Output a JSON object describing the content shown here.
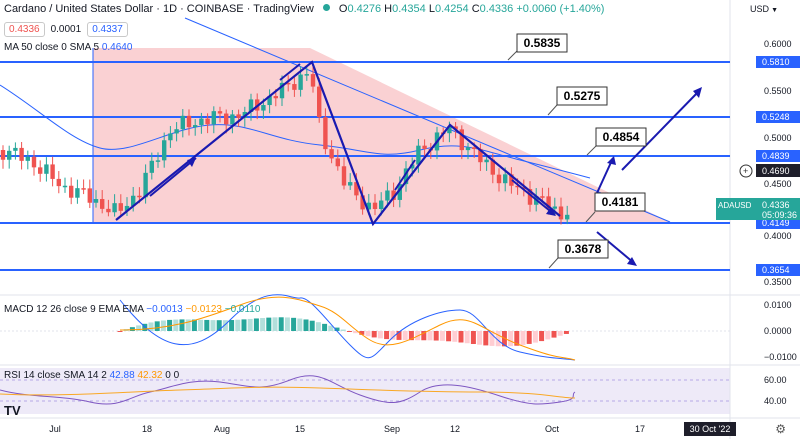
{
  "header": {
    "title": "Cardano / United States Dollar · 1D · COINBASE · TradingView",
    "open": "0.4276",
    "high": "0.4354",
    "low": "0.4254",
    "close": "0.4336",
    "change": "+0.0060 (+1.40%)"
  },
  "order": {
    "sell": "0.4336",
    "spread": "0.0001",
    "buy": "0.4337"
  },
  "ma": {
    "label": "MA 50 close 0 SMA 5",
    "value": "0.4640"
  },
  "macd": {
    "label": "MACD 12 26 close 9 EMA EMA",
    "v1": "−0.0013",
    "v2": "−0.0123",
    "v3": "−0.0110"
  },
  "rsi": {
    "label": "RSI 14 close SMA 14 2",
    "v1": "42.88",
    "v2": "42.32",
    "v3": "0",
    "v4": "0"
  },
  "currency": "USD",
  "time_axis": [
    "Jul",
    "18",
    "Aug",
    "15",
    "Sep",
    "12",
    "Oct",
    "17",
    "30 Oct '22"
  ],
  "price_axis": [
    "0.6000",
    "0.5500",
    "0.5000",
    "0.4500",
    "0.4000",
    "0.3500"
  ],
  "macd_axis": [
    "0.0100",
    "0.0000",
    "−0.0100"
  ],
  "rsi_axis": [
    "60.00",
    "40.00"
  ],
  "levels": [
    {
      "callout": "0.5835",
      "axis": "0.5810"
    },
    {
      "callout": "0.5275",
      "axis": "0.5248"
    },
    {
      "callout": "0.4854",
      "axis": "0.4839"
    },
    {
      "callout": "0.4181",
      "axis": "0.4149"
    },
    {
      "callout": "0.3678",
      "axis": "0.3654"
    }
  ],
  "marker_price": "0.4690",
  "current": {
    "symbol": "ADAUSD",
    "price": "0.4336",
    "countdown": "05:09:36"
  },
  "colors": {
    "up": "#26a69a",
    "down": "#ef5350",
    "level": "#2962ff",
    "triangle": "#f7c5c7",
    "drawing": "#1a1ab0",
    "ma": "#2962ff"
  },
  "icons": {
    "logo": "tradingview-logo-icon",
    "settings": "gear-icon"
  }
}
